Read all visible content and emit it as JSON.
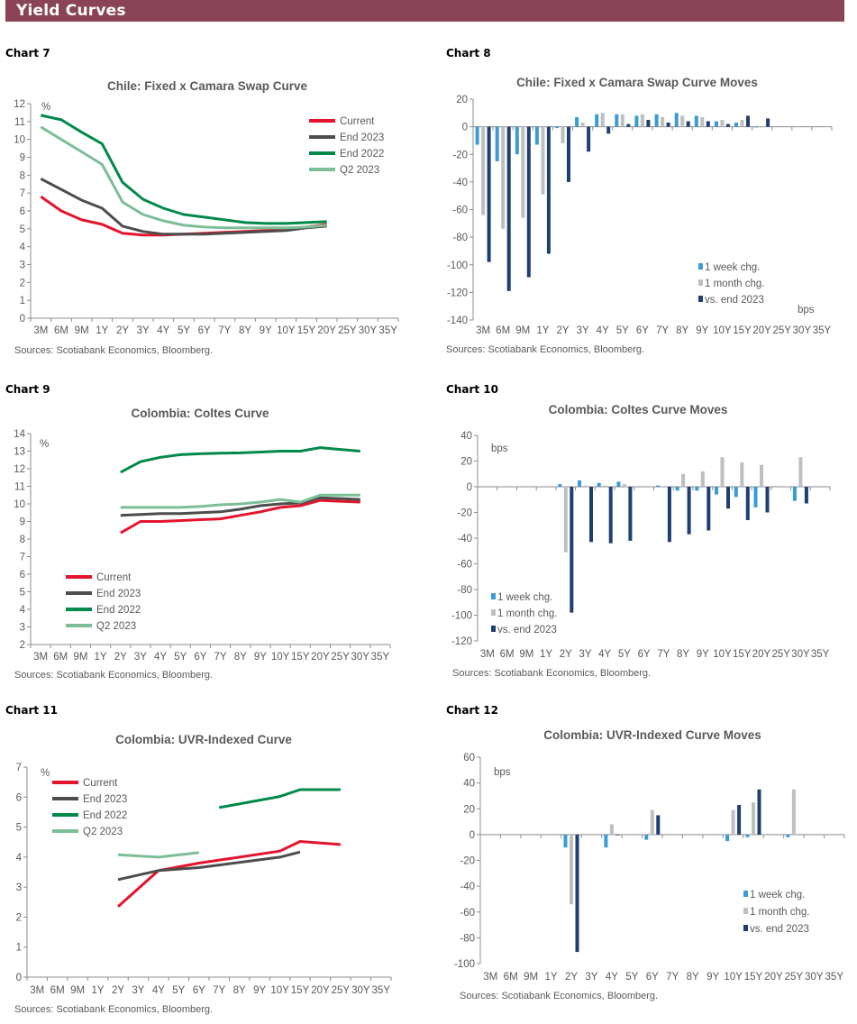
{
  "page_title": "Yield Curves",
  "colors": {
    "header": "#8B4457",
    "current": "#E3142D",
    "end2023": "#4D4D4D",
    "end2022": "#00894B",
    "q2_2023": "#7DBE98",
    "week": "#3A9BD5",
    "month": "#BFBFBF",
    "vs_end2023": "#1F3F73"
  },
  "charts": [
    {
      "label": "Chart 7",
      "sources": "Sources: Scotiabank Economics, Bloomberg."
    },
    {
      "label": "Chart 8",
      "sources": "Sources: Scotiabank Economics, Bloomberg."
    },
    {
      "label": "Chart 9",
      "sources": "Sources: Scotiabank Economics, Bloomberg."
    },
    {
      "label": "Chart 10",
      "sources": "Sources: Scotiabank Economics, Bloomberg."
    },
    {
      "label": "Chart 11",
      "sources": "Sources: Scotiabank Economics, Bloomberg."
    },
    {
      "label": "Chart 12",
      "sources": "Sources: Scotiabank Economics, Bloomberg."
    }
  ],
  "chart_data": [
    {
      "type": "line",
      "title": "Chile: Fixed x Camara Swap Curve",
      "unit_label": "%",
      "ylim": [
        0,
        12
      ],
      "ystep": 1,
      "legend": "top-right",
      "categories": [
        "3M",
        "6M",
        "9M",
        "1Y",
        "2Y",
        "3Y",
        "4Y",
        "5Y",
        "6Y",
        "7Y",
        "8Y",
        "9Y",
        "10Y",
        "15Y",
        "20Y",
        "25Y",
        "30Y",
        "35Y"
      ],
      "series": [
        {
          "name": "Current",
          "color": "#E3142D",
          "values": [
            6.8,
            6.0,
            5.5,
            5.25,
            4.75,
            4.65,
            4.65,
            4.7,
            4.75,
            4.8,
            4.85,
            4.9,
            4.95,
            5.1,
            5.25,
            null,
            null,
            null
          ]
        },
        {
          "name": "End 2023",
          "color": "#4D4D4D",
          "values": [
            7.8,
            7.2,
            6.6,
            6.15,
            5.15,
            4.85,
            4.7,
            4.7,
            4.7,
            4.75,
            4.8,
            4.85,
            4.9,
            5.05,
            5.15,
            null,
            null,
            null
          ]
        },
        {
          "name": "End 2022",
          "color": "#00894B",
          "values": [
            11.35,
            11.1,
            10.4,
            9.75,
            7.6,
            6.65,
            6.15,
            5.8,
            5.65,
            5.5,
            5.35,
            5.3,
            5.3,
            5.35,
            5.4,
            null,
            null,
            null
          ]
        },
        {
          "name": "Q2 2023",
          "color": "#7DBE98",
          "values": [
            10.7,
            10.0,
            9.3,
            8.6,
            6.5,
            5.8,
            5.45,
            5.2,
            5.1,
            5.05,
            5.05,
            5.05,
            5.05,
            5.1,
            5.2,
            null,
            null,
            null
          ]
        }
      ]
    },
    {
      "type": "bar",
      "title": "Chile: Fixed x Camara Swap Curve Moves",
      "unit_label": "bps",
      "ylim": [
        -140,
        20
      ],
      "ystep": 20,
      "legend": "bottom-right",
      "categories": [
        "3M",
        "6M",
        "9M",
        "1Y",
        "2Y",
        "3Y",
        "4Y",
        "5Y",
        "6Y",
        "7Y",
        "8Y",
        "9Y",
        "10Y",
        "15Y",
        "20Y",
        "25Y",
        "30Y",
        "35Y"
      ],
      "series": [
        {
          "name": "1 week chg.",
          "color": "#3A9BD5",
          "values": [
            -13,
            -25,
            -20,
            -13,
            -1,
            7,
            9,
            9,
            8,
            9,
            10,
            8,
            4,
            3,
            -0.5,
            null,
            null,
            null
          ]
        },
        {
          "name": "1 month chg.",
          "color": "#BFBFBF",
          "values": [
            -64,
            -74,
            -66,
            -49,
            -12,
            3,
            10,
            9,
            9,
            7,
            8,
            7,
            5,
            5,
            -0.5,
            null,
            null,
            null
          ]
        },
        {
          "name": "vs. end 2023",
          "color": "#1F3F73",
          "values": [
            -98,
            -119,
            -109,
            -92,
            -40,
            -18,
            -5,
            2,
            5,
            3,
            4,
            4,
            2,
            8,
            6,
            null,
            null,
            null
          ]
        }
      ]
    },
    {
      "type": "line",
      "title": "Colombia: Coltes Curve",
      "unit_label": "%",
      "ylim": [
        2,
        14
      ],
      "ystep": 1,
      "legend": "bottom-left",
      "categories": [
        "3M",
        "6M",
        "9M",
        "1Y",
        "2Y",
        "3Y",
        "4Y",
        "5Y",
        "6Y",
        "7Y",
        "8Y",
        "9Y",
        "10Y",
        "15Y",
        "20Y",
        "25Y",
        "30Y",
        "35Y"
      ],
      "series": [
        {
          "name": "Current",
          "color": "#E3142D",
          "values": [
            null,
            null,
            null,
            null,
            8.35,
            9.0,
            9.0,
            9.05,
            9.1,
            9.15,
            9.35,
            9.55,
            9.8,
            9.9,
            10.2,
            10.15,
            10.1,
            null
          ]
        },
        {
          "name": "End 2023",
          "color": "#4D4D4D",
          "values": [
            null,
            null,
            null,
            null,
            9.35,
            9.4,
            9.45,
            9.45,
            9.5,
            9.55,
            9.7,
            9.9,
            10.0,
            10.05,
            10.35,
            10.3,
            10.25,
            null
          ]
        },
        {
          "name": "End 2022",
          "color": "#00894B",
          "values": [
            null,
            null,
            null,
            null,
            11.8,
            12.4,
            12.65,
            12.8,
            12.85,
            12.88,
            12.9,
            12.95,
            13.0,
            13.0,
            13.2,
            13.1,
            13.0,
            null
          ]
        },
        {
          "name": "Q2 2023",
          "color": "#7DBE98",
          "values": [
            null,
            null,
            null,
            null,
            9.8,
            9.8,
            9.8,
            9.8,
            9.85,
            9.95,
            10.0,
            10.1,
            10.25,
            10.1,
            10.5,
            10.5,
            10.5,
            null
          ]
        }
      ]
    },
    {
      "type": "bar",
      "title": "Colombia: Coltes Curve Moves",
      "unit_label": "bps",
      "ylim": [
        -120,
        40
      ],
      "ystep": 20,
      "legend": "bottom-left",
      "categories": [
        "3M",
        "6M",
        "9M",
        "1Y",
        "2Y",
        "3Y",
        "4Y",
        "5Y",
        "6Y",
        "7Y",
        "8Y",
        "9Y",
        "10Y",
        "15Y",
        "20Y",
        "25Y",
        "30Y",
        "35Y"
      ],
      "series": [
        {
          "name": "1 week chg.",
          "color": "#3A9BD5",
          "values": [
            null,
            null,
            null,
            null,
            2,
            5,
            3,
            4,
            null,
            1,
            -3,
            -3,
            -6,
            -8,
            -16,
            null,
            -11,
            null
          ]
        },
        {
          "name": "1 month chg.",
          "color": "#BFBFBF",
          "values": [
            null,
            null,
            null,
            null,
            -51,
            1,
            1,
            2,
            null,
            0.5,
            10,
            12,
            23,
            19,
            17,
            null,
            23,
            null
          ]
        },
        {
          "name": "vs. end 2023",
          "color": "#1F3F73",
          "values": [
            null,
            null,
            null,
            null,
            -98,
            -43,
            -44,
            -42,
            null,
            -43,
            -37,
            -34,
            -17,
            -26,
            -20,
            null,
            -13,
            null
          ]
        }
      ]
    },
    {
      "type": "line",
      "title": "Colombia: UVR-Indexed Curve",
      "unit_label": "%",
      "ylim": [
        0,
        7
      ],
      "ystep": 1,
      "legend": "top-left",
      "categories": [
        "3M",
        "6M",
        "9M",
        "1Y",
        "2Y",
        "3Y",
        "4Y",
        "5Y",
        "6Y",
        "7Y",
        "8Y",
        "9Y",
        "10Y",
        "15Y",
        "20Y",
        "25Y",
        "30Y",
        "35Y"
      ],
      "series": [
        {
          "name": "Current",
          "color": "#E3142D",
          "values": [
            null,
            null,
            null,
            null,
            2.35,
            null,
            3.55,
            null,
            3.8,
            null,
            null,
            null,
            4.2,
            4.52,
            null,
            4.42,
            null,
            null
          ]
        },
        {
          "name": "End 2023",
          "color": "#4D4D4D",
          "values": [
            null,
            null,
            null,
            null,
            3.25,
            null,
            3.55,
            null,
            3.65,
            null,
            null,
            null,
            4.0,
            4.17,
            null,
            null,
            null,
            null
          ]
        },
        {
          "name": "End 2022",
          "color": "#00894B",
          "values": [
            null,
            null,
            null,
            null,
            null,
            null,
            null,
            null,
            null,
            5.65,
            null,
            null,
            6.02,
            6.25,
            null,
            6.25,
            null,
            null
          ]
        },
        {
          "name": "Q2 2023",
          "color": "#7DBE98",
          "values": [
            null,
            null,
            null,
            null,
            4.08,
            null,
            4.0,
            null,
            4.15,
            null,
            null,
            null,
            null,
            null,
            null,
            null,
            null,
            null
          ]
        }
      ]
    },
    {
      "type": "bar",
      "title": "Colombia: UVR-Indexed Curve Moves",
      "unit_label": "bps",
      "ylim": [
        -100,
        60
      ],
      "ystep": 20,
      "legend": "bottom-right",
      "categories": [
        "3M",
        "6M",
        "9M",
        "1Y",
        "2Y",
        "3Y",
        "4Y",
        "5Y",
        "6Y",
        "7Y",
        "8Y",
        "9Y",
        "10Y",
        "15Y",
        "20Y",
        "25Y",
        "30Y",
        "35Y"
      ],
      "series": [
        {
          "name": "1 week chg.",
          "color": "#3A9BD5",
          "values": [
            null,
            null,
            null,
            null,
            -10,
            null,
            -10,
            null,
            -4,
            null,
            null,
            null,
            -5,
            -2,
            null,
            -2,
            null,
            null
          ]
        },
        {
          "name": "1 month chg.",
          "color": "#BFBFBF",
          "values": [
            null,
            null,
            null,
            null,
            -54,
            null,
            8,
            null,
            19,
            null,
            null,
            null,
            19,
            25,
            null,
            35,
            null,
            null
          ]
        },
        {
          "name": "vs. end 2023",
          "color": "#1F3F73",
          "values": [
            null,
            null,
            null,
            null,
            -91,
            null,
            0,
            null,
            15,
            null,
            null,
            null,
            23,
            35,
            null,
            null,
            null,
            null
          ]
        }
      ]
    }
  ]
}
